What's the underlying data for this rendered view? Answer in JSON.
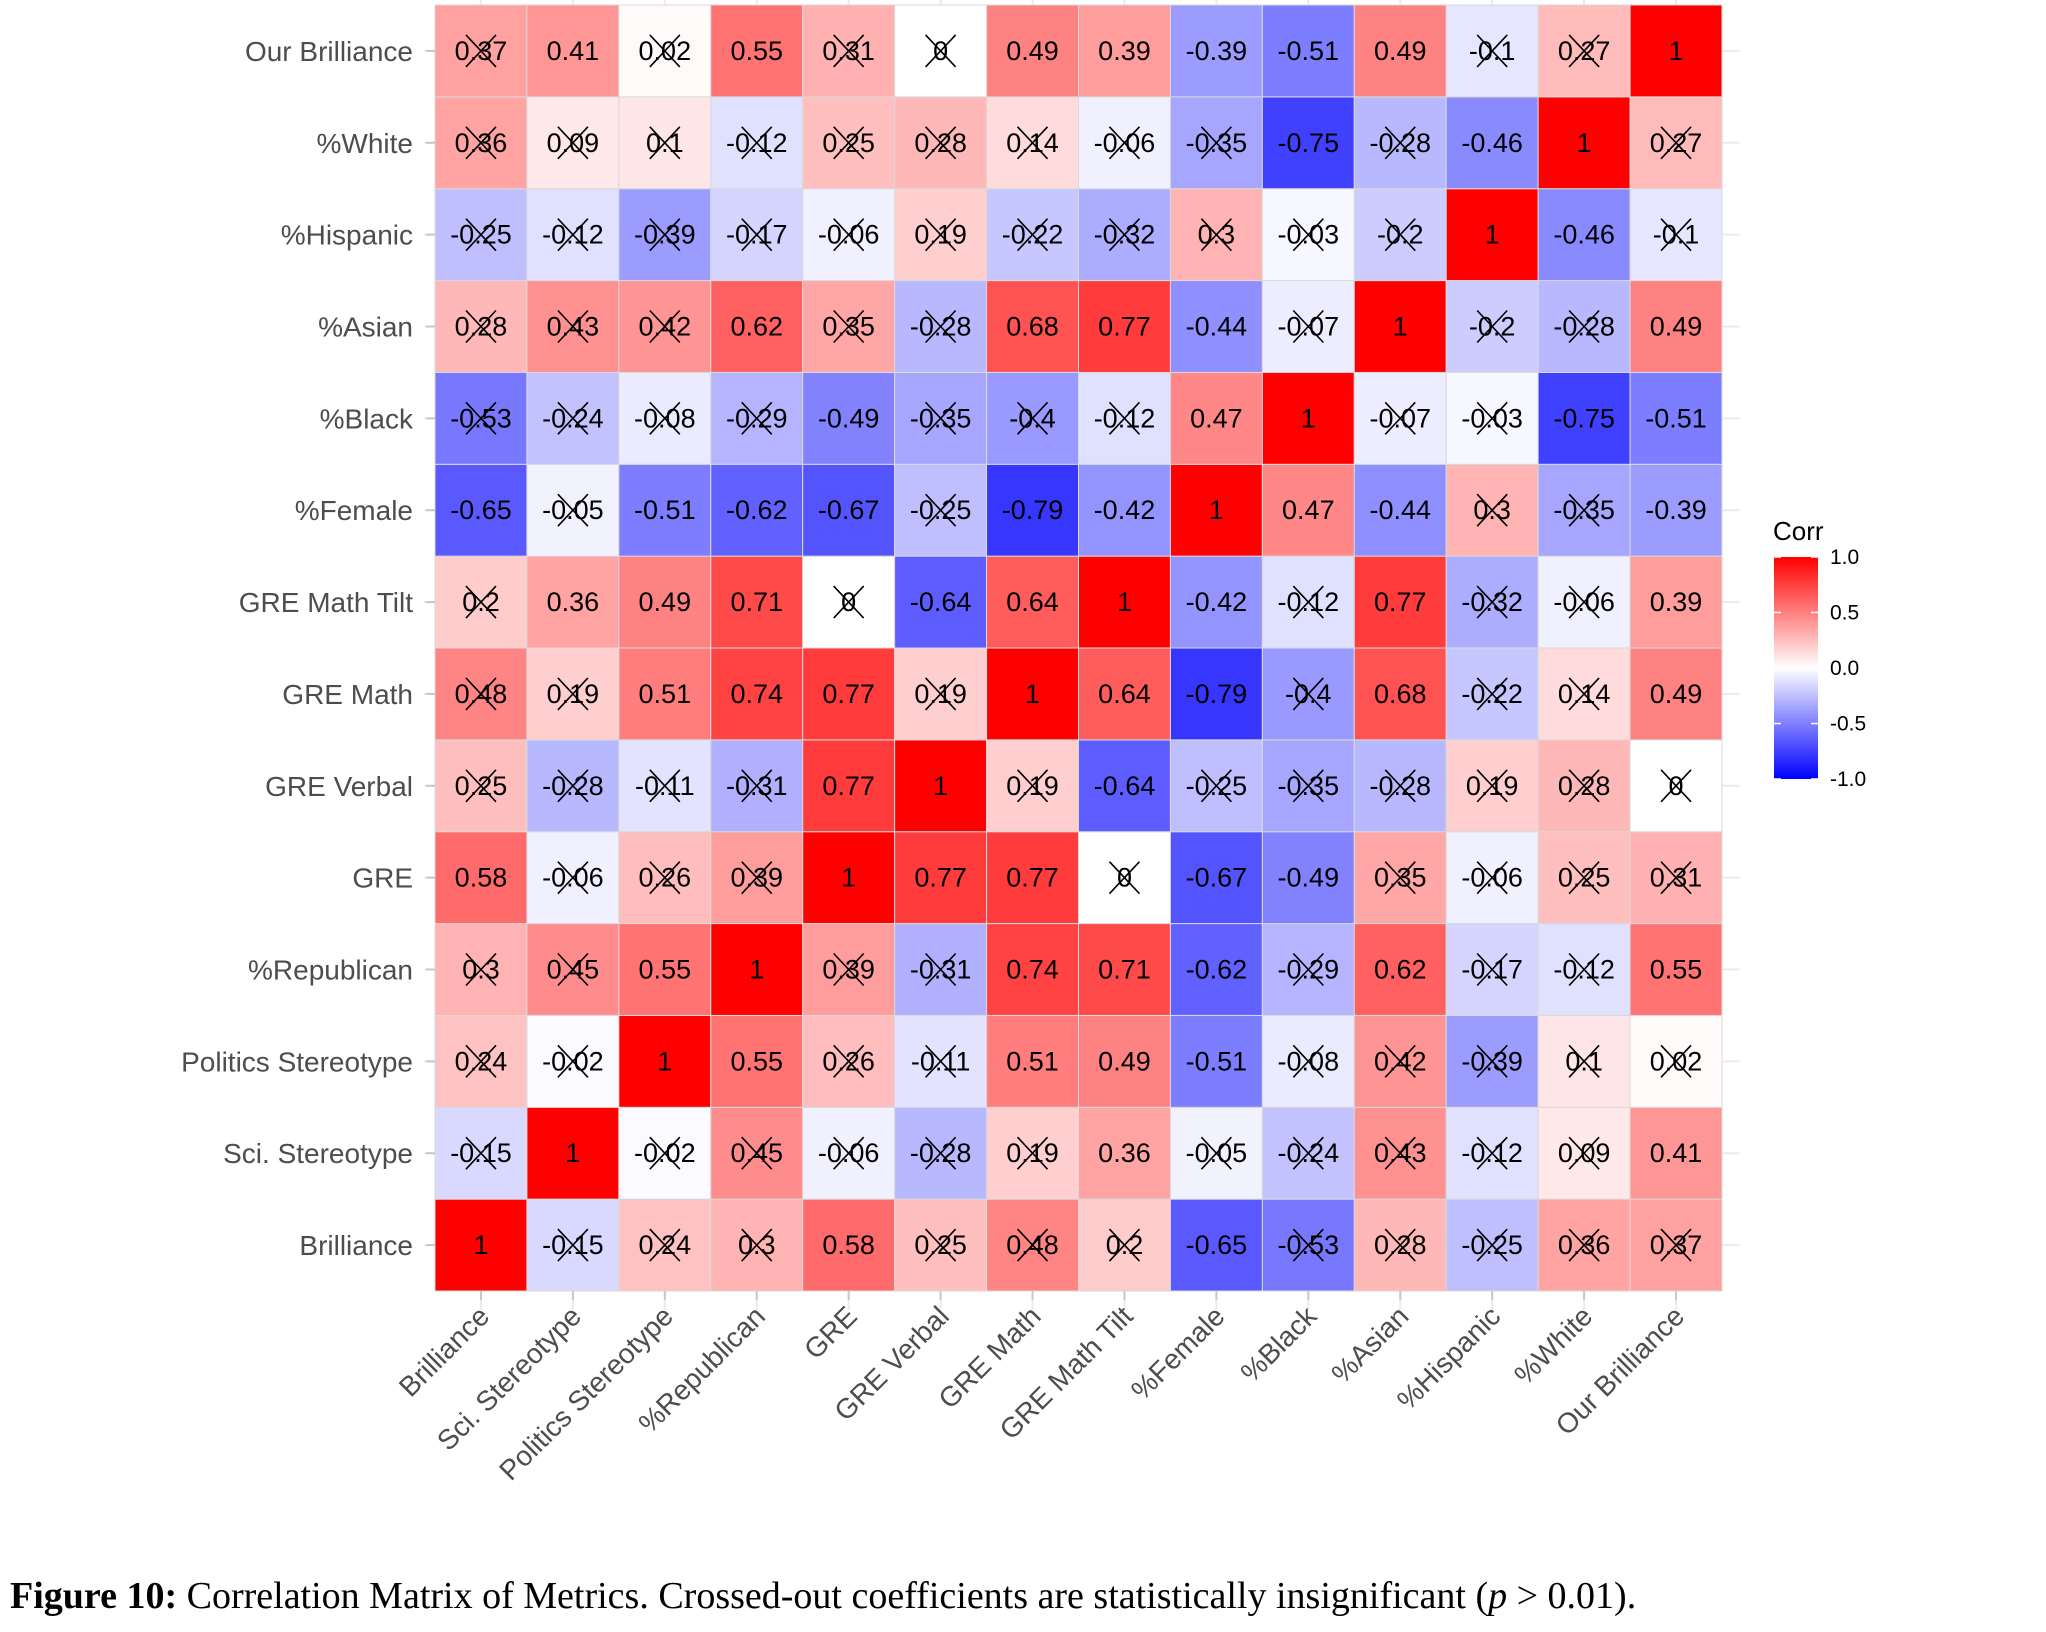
{
  "chart_data": {
    "type": "heatmap",
    "title": "",
    "xlabel": "",
    "ylabel": "",
    "variables": [
      "Brilliance",
      "Sci. Stereotype",
      "Politics Stereotype",
      "%Republican",
      "GRE",
      "GRE Verbal",
      "GRE Math",
      "GRE Math Tilt",
      "%Female",
      "%Black",
      "%Asian",
      "%Hispanic",
      "%White",
      "Our Brilliance"
    ],
    "x_tick_labels": [
      "Brilliance",
      "Sci. Stereotype",
      "Politics Stereotype",
      "%Republican",
      "GRE",
      "GRE Verbal",
      "GRE Math",
      "GRE Math Tilt",
      "%Female",
      "%Black",
      "%Asian",
      "%Hispanic",
      "%White",
      "Our Brilliance"
    ],
    "y_tick_labels_bottom_to_top": [
      "Brilliance",
      "Sci. Stereotype",
      "Politics Stereotype",
      "%Republican",
      "GRE",
      "GRE Verbal",
      "GRE Math",
      "GRE Math Tilt",
      "%Female",
      "%Black",
      "%Asian",
      "%Hispanic",
      "%White",
      "Our Brilliance"
    ],
    "matrix": [
      [
        1,
        -0.15,
        0.24,
        0.3,
        0.58,
        0.25,
        0.48,
        0.2,
        -0.65,
        -0.53,
        0.28,
        -0.25,
        0.36,
        0.37
      ],
      [
        -0.15,
        1,
        -0.02,
        0.45,
        -0.06,
        -0.28,
        0.19,
        0.36,
        -0.05,
        -0.24,
        0.43,
        -0.12,
        0.09,
        0.41
      ],
      [
        0.24,
        -0.02,
        1,
        0.55,
        0.26,
        -0.11,
        0.51,
        0.49,
        -0.51,
        -0.08,
        0.42,
        -0.39,
        0.1,
        0.02
      ],
      [
        0.3,
        0.45,
        0.55,
        1,
        0.39,
        -0.31,
        0.74,
        0.71,
        -0.62,
        -0.29,
        0.62,
        -0.17,
        -0.12,
        0.55
      ],
      [
        0.58,
        -0.06,
        0.26,
        0.39,
        1,
        0.77,
        0.77,
        0,
        -0.67,
        -0.49,
        0.35,
        -0.06,
        0.25,
        0.31
      ],
      [
        0.25,
        -0.28,
        -0.11,
        -0.31,
        0.77,
        1,
        0.19,
        -0.64,
        -0.25,
        -0.35,
        -0.28,
        0.19,
        0.28,
        0
      ],
      [
        0.48,
        0.19,
        0.51,
        0.74,
        0.77,
        0.19,
        1,
        0.64,
        -0.79,
        -0.4,
        0.68,
        -0.22,
        0.14,
        0.49
      ],
      [
        0.2,
        0.36,
        0.49,
        0.71,
        0,
        -0.64,
        0.64,
        1,
        -0.42,
        -0.12,
        0.77,
        -0.32,
        -0.06,
        0.39
      ],
      [
        -0.65,
        -0.05,
        -0.51,
        -0.62,
        -0.67,
        -0.25,
        -0.79,
        -0.42,
        1,
        0.47,
        -0.44,
        0.3,
        -0.35,
        -0.39
      ],
      [
        -0.53,
        -0.24,
        -0.08,
        -0.29,
        -0.49,
        -0.35,
        -0.4,
        -0.12,
        0.47,
        1,
        -0.07,
        -0.03,
        -0.75,
        -0.51
      ],
      [
        0.28,
        0.43,
        0.42,
        0.62,
        0.35,
        -0.28,
        0.68,
        0.77,
        -0.44,
        -0.07,
        1,
        -0.2,
        -0.28,
        0.49
      ],
      [
        -0.25,
        -0.12,
        -0.39,
        -0.17,
        -0.06,
        0.19,
        -0.22,
        -0.32,
        0.3,
        -0.03,
        -0.2,
        1,
        -0.46,
        -0.1
      ],
      [
        0.36,
        0.09,
        0.1,
        -0.12,
        0.25,
        0.28,
        0.14,
        -0.06,
        -0.35,
        -0.75,
        -0.28,
        -0.46,
        1,
        0.27
      ],
      [
        0.37,
        0.41,
        0.02,
        0.55,
        0.31,
        0,
        0.49,
        0.39,
        -0.39,
        -0.51,
        0.49,
        -0.1,
        0.27,
        1
      ]
    ],
    "insignificant": [
      [
        0,
        1,
        1,
        1,
        0,
        1,
        1,
        1,
        0,
        1,
        1,
        1,
        1,
        1
      ],
      [
        1,
        0,
        1,
        1,
        1,
        1,
        1,
        0,
        1,
        1,
        1,
        1,
        1,
        0
      ],
      [
        1,
        1,
        0,
        0,
        1,
        1,
        0,
        0,
        0,
        1,
        1,
        1,
        1,
        1
      ],
      [
        1,
        1,
        0,
        0,
        1,
        1,
        0,
        0,
        0,
        1,
        0,
        1,
        1,
        0
      ],
      [
        0,
        1,
        1,
        1,
        0,
        0,
        0,
        1,
        0,
        0,
        1,
        1,
        1,
        1
      ],
      [
        1,
        1,
        1,
        1,
        0,
        0,
        1,
        0,
        1,
        1,
        1,
        1,
        1,
        1
      ],
      [
        1,
        1,
        0,
        0,
        0,
        1,
        0,
        0,
        0,
        1,
        0,
        1,
        1,
        0
      ],
      [
        1,
        0,
        0,
        0,
        1,
        0,
        0,
        0,
        0,
        1,
        0,
        1,
        1,
        0
      ],
      [
        0,
        1,
        0,
        0,
        0,
        1,
        0,
        0,
        0,
        0,
        0,
        1,
        1,
        0
      ],
      [
        1,
        1,
        1,
        1,
        0,
        1,
        1,
        1,
        0,
        0,
        1,
        1,
        0,
        0
      ],
      [
        1,
        1,
        1,
        0,
        1,
        1,
        0,
        0,
        0,
        1,
        0,
        1,
        1,
        0
      ],
      [
        1,
        1,
        1,
        1,
        1,
        1,
        1,
        1,
        1,
        1,
        1,
        0,
        0,
        1
      ],
      [
        1,
        1,
        1,
        1,
        1,
        1,
        1,
        1,
        1,
        0,
        1,
        0,
        0,
        1
      ],
      [
        1,
        0,
        1,
        0,
        1,
        1,
        0,
        0,
        0,
        0,
        0,
        1,
        1,
        0
      ]
    ],
    "color_scale": {
      "low": "#0000ff",
      "mid": "#ffffff",
      "high": "#ff0000",
      "limits": [
        -1,
        1
      ]
    },
    "legend": {
      "title": "Corr",
      "ticks": [
        "1.0",
        "0.5",
        "0.0",
        "-0.5",
        "-1.0"
      ],
      "tick_values": [
        1,
        0.5,
        0,
        -0.5,
        -1
      ],
      "position": "right"
    },
    "grid": true
  },
  "caption": {
    "lead": "Figure 10:",
    "text_before_p": " Correlation Matrix of Metrics. Crossed-out coefficients are statistically insignificant (",
    "p_symbol": "p",
    "text_after_p": " > 0.01)."
  }
}
